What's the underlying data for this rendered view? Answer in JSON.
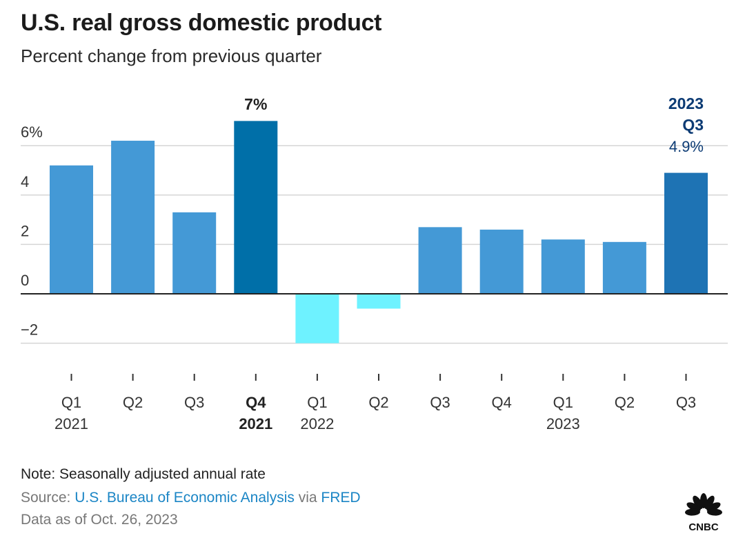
{
  "header": {
    "title": "U.S. real gross domestic product",
    "subtitle": "Percent change from previous quarter"
  },
  "chart_data": {
    "type": "bar",
    "categories": [
      {
        "q": "Q1",
        "year": "2021"
      },
      {
        "q": "Q2",
        "year": ""
      },
      {
        "q": "Q3",
        "year": ""
      },
      {
        "q": "Q4",
        "year": "2021"
      },
      {
        "q": "Q1",
        "year": "2022"
      },
      {
        "q": "Q2",
        "year": ""
      },
      {
        "q": "Q3",
        "year": ""
      },
      {
        "q": "Q4",
        "year": ""
      },
      {
        "q": "Q1",
        "year": "2023"
      },
      {
        "q": "Q2",
        "year": ""
      },
      {
        "q": "Q3",
        "year": ""
      }
    ],
    "values": [
      5.2,
      6.2,
      3.3,
      7.0,
      -2.0,
      -0.6,
      2.7,
      2.6,
      2.2,
      2.1,
      4.9
    ],
    "ylim": [
      -2.6,
      7.5
    ],
    "yticks": [
      {
        "value": 6,
        "label": "6%"
      },
      {
        "value": 4,
        "label": "4"
      },
      {
        "value": 2,
        "label": "2"
      },
      {
        "value": 0,
        "label": "0"
      },
      {
        "value": -2,
        "label": "−2"
      }
    ],
    "highlight_bold_index": 3,
    "highlight_latest_index": 10,
    "annotations": {
      "peak_label": "7%",
      "latest_line1": "2023",
      "latest_line2": "Q3",
      "latest_value": "4.9%"
    },
    "colors": {
      "positive": "#4499d6",
      "negative": "#6ef2ff",
      "peak": "#006fa8",
      "latest": "#1e73b4",
      "latest_text": "#0c3b74",
      "grid": "#d5d5d5",
      "baseline": "#222222"
    }
  },
  "footer": {
    "note": "Note: Seasonally adjusted annual rate",
    "source_prefix": "Source: ",
    "source_bea": "U.S. Bureau of Economic Analysis",
    "source_via": " via ",
    "source_fred": "FRED",
    "data_as_of": "Data as of Oct. 26, 2023",
    "logo_text": "CNBC"
  }
}
